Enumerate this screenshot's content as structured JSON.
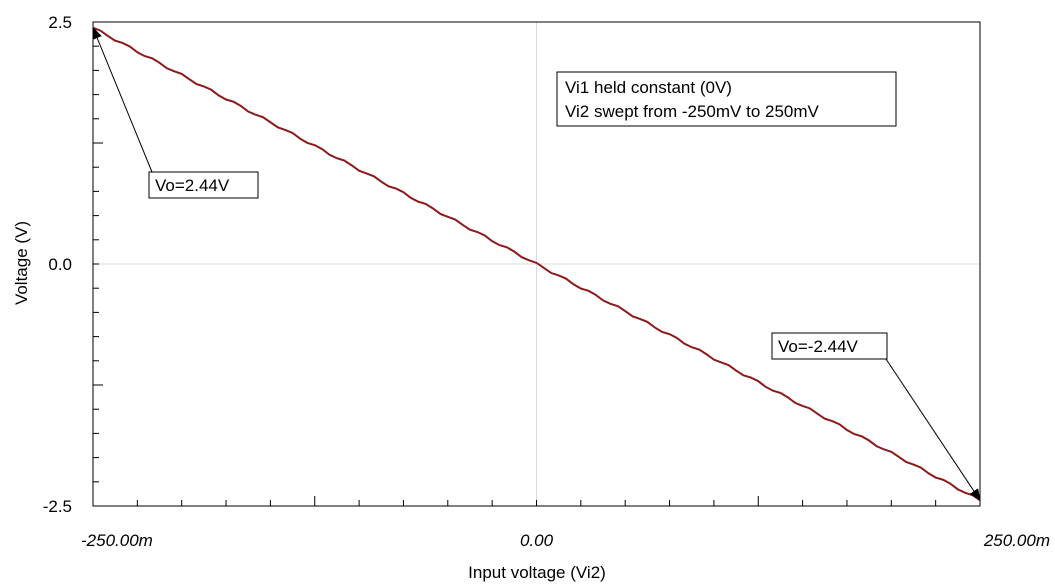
{
  "chart_data": {
    "type": "line",
    "xlabel": "Input voltage (Vi2)",
    "ylabel": "Voltage (V)",
    "xlim": [
      -0.25,
      0.25
    ],
    "ylim": [
      -2.5,
      2.5
    ],
    "x_ticks": [
      {
        "value": -0.25,
        "label": "-250.00m"
      },
      {
        "value": 0,
        "label": "0.00"
      },
      {
        "value": 0.25,
        "label": "250.00m"
      }
    ],
    "y_ticks": [
      {
        "value": 2.5,
        "label": "2.5"
      },
      {
        "value": 0,
        "label": "0.0"
      },
      {
        "value": -2.5,
        "label": "-2.5"
      }
    ],
    "grid": true,
    "series": [
      {
        "color": "#8b1a1a",
        "x": [
          -0.25,
          0.25
        ],
        "y": [
          2.44,
          -2.44
        ]
      }
    ],
    "annotations": [
      {
        "label": "Vo=2.44V",
        "x": -0.25,
        "y": 2.44
      },
      {
        "label": "Vo=-2.44V",
        "x": 0.25,
        "y": -2.44
      }
    ],
    "info_box": {
      "lines": [
        "Vi1 held constant (0V)",
        "Vi2 swept from -250mV to 250mV"
      ]
    }
  }
}
